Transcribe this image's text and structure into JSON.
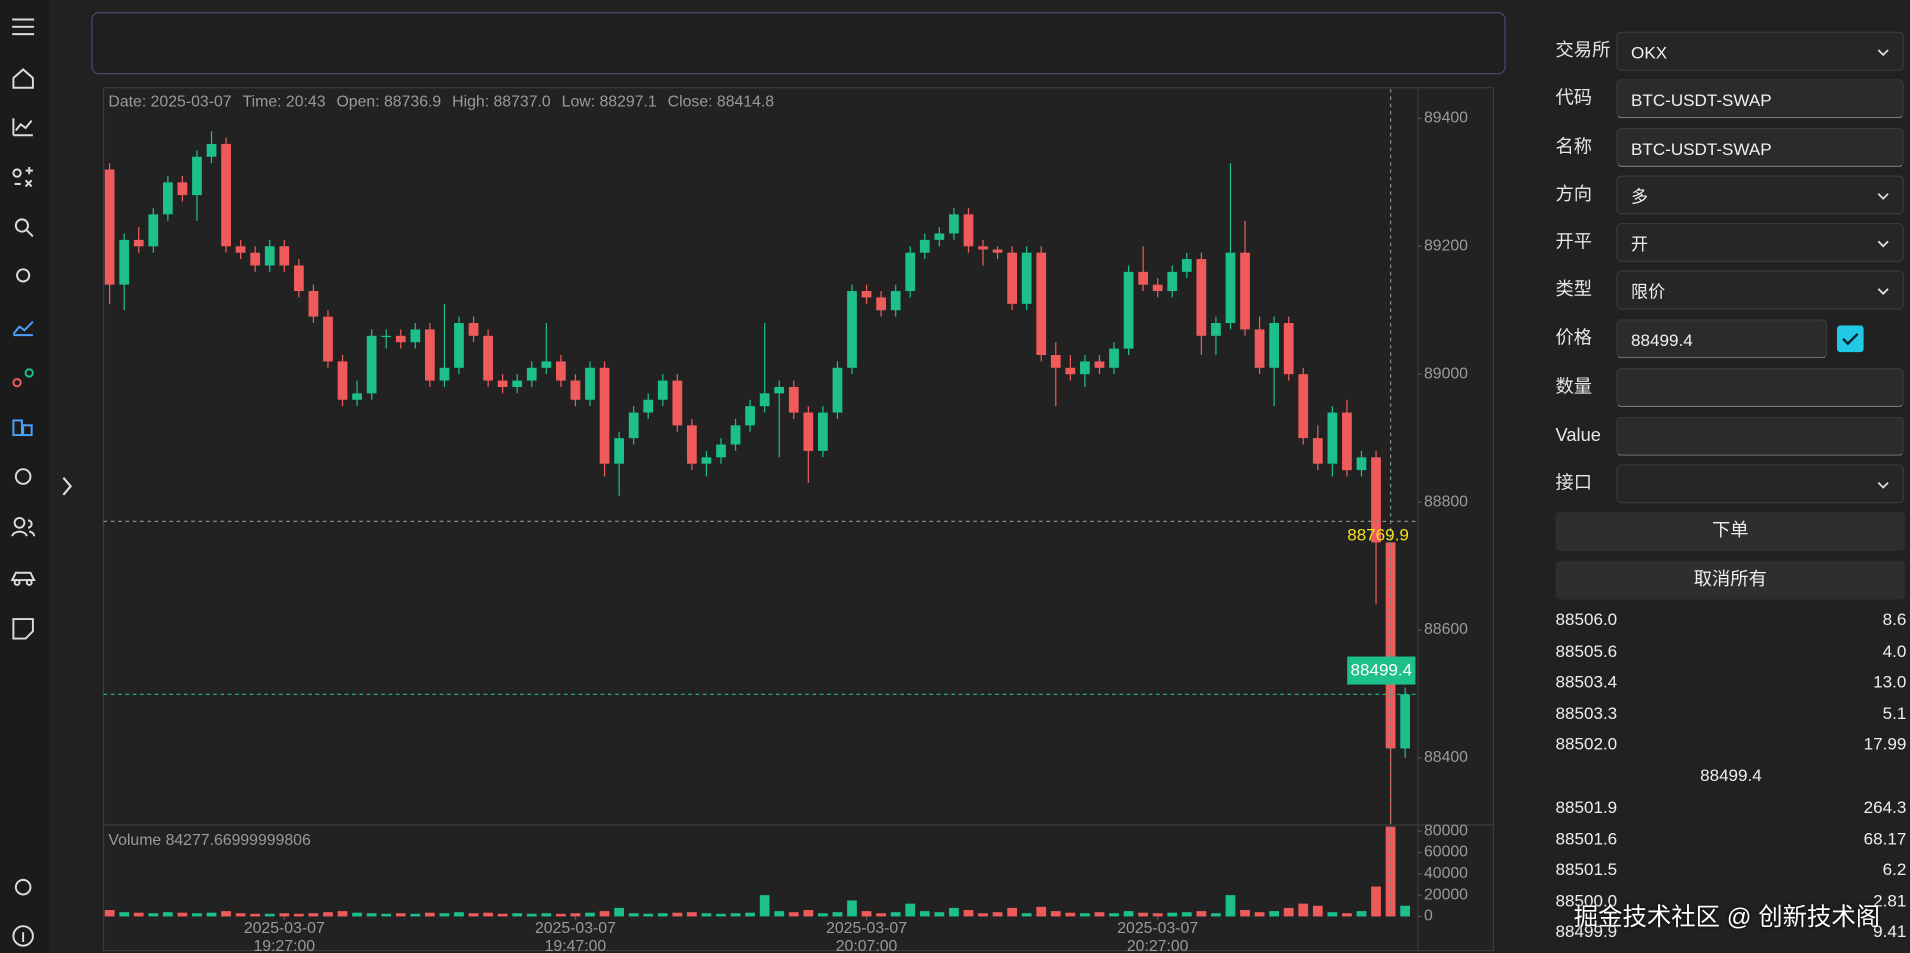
{
  "form": {
    "fields": [
      {
        "label": "交易所",
        "value": "OKX"
      },
      {
        "label": "代码",
        "value": "BTC-USDT-SWAP"
      },
      {
        "label": "名称",
        "value": "BTC-USDT-SWAP"
      },
      {
        "label": "方向",
        "value": "多"
      },
      {
        "label": "开平",
        "value": "开"
      },
      {
        "label": "类型",
        "value": "限价"
      },
      {
        "label": "价格",
        "value": "88499.4"
      },
      {
        "label": "数量"
      },
      {
        "label": "Value"
      },
      {
        "label": "接口"
      }
    ],
    "buttons": [
      "下单",
      "取消所有"
    ]
  },
  "order_book": {
    "asks": [
      [
        "88506.0",
        "8.6"
      ],
      [
        "88505.6",
        "4.0"
      ],
      [
        "88503.4",
        "13.0"
      ],
      [
        "88503.3",
        "5.1"
      ],
      [
        "88502.0",
        "17.99"
      ]
    ],
    "mid": "88499.4",
    "bids": [
      [
        "88501.9",
        "264.3"
      ],
      [
        "88501.6",
        "68.17"
      ],
      [
        "88501.5",
        "6.2"
      ],
      [
        "88500.0",
        "2.81"
      ],
      [
        "88499.9",
        "9.41"
      ]
    ]
  },
  "watermark": "掘金技术社区 @ 创新技术阁",
  "chart_data": {
    "type": "candlestick",
    "info": [
      "Date: 2025-03-07",
      "Time: 20:43",
      "Open: 88736.9",
      "High: 88737.0",
      "Low: 88297.1",
      "Close: 88414.8"
    ],
    "up_color": "#1dbf8a",
    "down_color": "#ef5b5b",
    "ohlc": [
      [
        89320,
        89330,
        89110,
        89140
      ],
      [
        89140,
        89220,
        89100,
        89210
      ],
      [
        89210,
        89230,
        89190,
        89200
      ],
      [
        89200,
        89260,
        89190,
        89250
      ],
      [
        89250,
        89310,
        89240,
        89300
      ],
      [
        89300,
        89310,
        89270,
        89280
      ],
      [
        89280,
        89350,
        89240,
        89340
      ],
      [
        89340,
        89380,
        89330,
        89360
      ],
      [
        89360,
        89370,
        89190,
        89200
      ],
      [
        89200,
        89210,
        89180,
        89190
      ],
      [
        89190,
        89200,
        89160,
        89170
      ],
      [
        89170,
        89210,
        89160,
        89200
      ],
      [
        89200,
        89210,
        89160,
        89170
      ],
      [
        89170,
        89180,
        89120,
        89130
      ],
      [
        89130,
        89140,
        89080,
        89090
      ],
      [
        89090,
        89100,
        89010,
        89020
      ],
      [
        89020,
        89030,
        88950,
        88960
      ],
      [
        88960,
        88990,
        88950,
        88970
      ],
      [
        88970,
        89070,
        88960,
        89060
      ],
      [
        89060,
        89070,
        89040,
        89060
      ],
      [
        89060,
        89070,
        89040,
        89050
      ],
      [
        89050,
        89080,
        89040,
        89070
      ],
      [
        89070,
        89080,
        88980,
        88990
      ],
      [
        88990,
        89110,
        88980,
        89010
      ],
      [
        89010,
        89090,
        89000,
        89080
      ],
      [
        89080,
        89090,
        89050,
        89060
      ],
      [
        89060,
        89070,
        88980,
        88990
      ],
      [
        88990,
        89000,
        88970,
        88980
      ],
      [
        88980,
        89000,
        88970,
        88990
      ],
      [
        88990,
        89020,
        88980,
        89010
      ],
      [
        89010,
        89080,
        89000,
        89020
      ],
      [
        89020,
        89030,
        88980,
        88990
      ],
      [
        88990,
        89000,
        88950,
        88960
      ],
      [
        88960,
        89020,
        88950,
        89010
      ],
      [
        89010,
        89020,
        88840,
        88860
      ],
      [
        88860,
        88910,
        88810,
        88900
      ],
      [
        88900,
        88950,
        88890,
        88940
      ],
      [
        88940,
        88970,
        88930,
        88960
      ],
      [
        88960,
        89000,
        88950,
        88990
      ],
      [
        88990,
        89000,
        88910,
        88920
      ],
      [
        88920,
        88930,
        88850,
        88860
      ],
      [
        88860,
        88880,
        88840,
        88870
      ],
      [
        88870,
        88900,
        88860,
        88890
      ],
      [
        88890,
        88930,
        88880,
        88920
      ],
      [
        88920,
        88960,
        88910,
        88950
      ],
      [
        88950,
        89080,
        88940,
        88970
      ],
      [
        88970,
        88990,
        88870,
        88980
      ],
      [
        88980,
        88990,
        88930,
        88940
      ],
      [
        88940,
        88950,
        88830,
        88880
      ],
      [
        88880,
        88950,
        88870,
        88940
      ],
      [
        88940,
        89020,
        88930,
        89010
      ],
      [
        89010,
        89140,
        89000,
        89130
      ],
      [
        89130,
        89140,
        89110,
        89120
      ],
      [
        89120,
        89130,
        89090,
        89100
      ],
      [
        89100,
        89140,
        89090,
        89130
      ],
      [
        89130,
        89200,
        89120,
        89190
      ],
      [
        89190,
        89220,
        89180,
        89210
      ],
      [
        89210,
        89230,
        89200,
        89220
      ],
      [
        89220,
        89260,
        89210,
        89250
      ],
      [
        89250,
        89260,
        89190,
        89200
      ],
      [
        89200,
        89210,
        89170,
        89195
      ],
      [
        89195,
        89200,
        89180,
        89190
      ],
      [
        89190,
        89200,
        89100,
        89110
      ],
      [
        89110,
        89200,
        89100,
        89190
      ],
      [
        89190,
        89200,
        89020,
        89030
      ],
      [
        89030,
        89050,
        88950,
        89010
      ],
      [
        89010,
        89030,
        88990,
        89000
      ],
      [
        89000,
        89030,
        88980,
        89020
      ],
      [
        89020,
        89030,
        89000,
        89010
      ],
      [
        89010,
        89050,
        89000,
        89040
      ],
      [
        89040,
        89170,
        89030,
        89160
      ],
      [
        89160,
        89200,
        89130,
        89140
      ],
      [
        89140,
        89150,
        89120,
        89130
      ],
      [
        89130,
        89170,
        89120,
        89160
      ],
      [
        89160,
        89190,
        89150,
        89180
      ],
      [
        89180,
        89190,
        89030,
        89060
      ],
      [
        89060,
        89090,
        89030,
        89080
      ],
      [
        89080,
        89330,
        89070,
        89190
      ],
      [
        89190,
        89240,
        89060,
        89070
      ],
      [
        89070,
        89090,
        89000,
        89010
      ],
      [
        89010,
        89090,
        88950,
        89080
      ],
      [
        89080,
        89090,
        88990,
        89000
      ],
      [
        89000,
        89010,
        88890,
        88900
      ],
      [
        88900,
        88920,
        88850,
        88860
      ],
      [
        88860,
        88950,
        88840,
        88940
      ],
      [
        88940,
        88960,
        88840,
        88850
      ],
      [
        88850,
        88880,
        88840,
        88870
      ],
      [
        88870,
        88880,
        88640,
        88736.9
      ],
      [
        88736.9,
        88737.0,
        88297.1,
        88414.8
      ],
      [
        88414.8,
        88510,
        88400,
        88499.4
      ]
    ],
    "volume": [
      6000,
      4000,
      3500,
      3000,
      4000,
      3500,
      3000,
      3500,
      5000,
      3000,
      2500,
      2500,
      3000,
      2500,
      3000,
      4000,
      5000,
      3500,
      3000,
      2500,
      3000,
      2500,
      3500,
      3000,
      4000,
      3000,
      3500,
      2500,
      3000,
      2500,
      3000,
      2500,
      3000,
      3500,
      5000,
      8000,
      3000,
      2500,
      3000,
      3500,
      4000,
      3000,
      2500,
      3000,
      3500,
      20000,
      5000,
      4000,
      6000,
      3000,
      4000,
      15000,
      5000,
      3000,
      4000,
      12000,
      5000,
      4000,
      8000,
      6000,
      3000,
      4000,
      8000,
      3000,
      9000,
      5000,
      3500,
      3000,
      4000,
      3000,
      5000,
      3500,
      3000,
      3500,
      4000,
      5000,
      3000,
      20000,
      6000,
      4000,
      5000,
      8000,
      12000,
      10000,
      4000,
      3000,
      5000,
      28000,
      84277.67,
      10000
    ],
    "volume_label": "Volume 84277.66999999806",
    "ylim": [
      88295,
      89446
    ],
    "yticks": [
      88400,
      88600,
      88800,
      89000,
      89200,
      89400
    ],
    "volume_ylim": [
      0,
      84600
    ],
    "volume_yticks": [
      0,
      20000,
      40000,
      60000,
      80000
    ],
    "xticks": [
      {
        "value": 12,
        "label": [
          "2025-03-07",
          "19:27:00"
        ]
      },
      {
        "value": 32,
        "label": [
          "2025-03-07",
          "19:47:00"
        ]
      },
      {
        "value": 52,
        "label": [
          "2025-03-07",
          "20:07:00"
        ]
      },
      {
        "value": 72,
        "label": [
          "2025-03-07",
          "20:27:00"
        ]
      }
    ],
    "crosshair": {
      "index": 88,
      "price": 88769.9
    }
  }
}
